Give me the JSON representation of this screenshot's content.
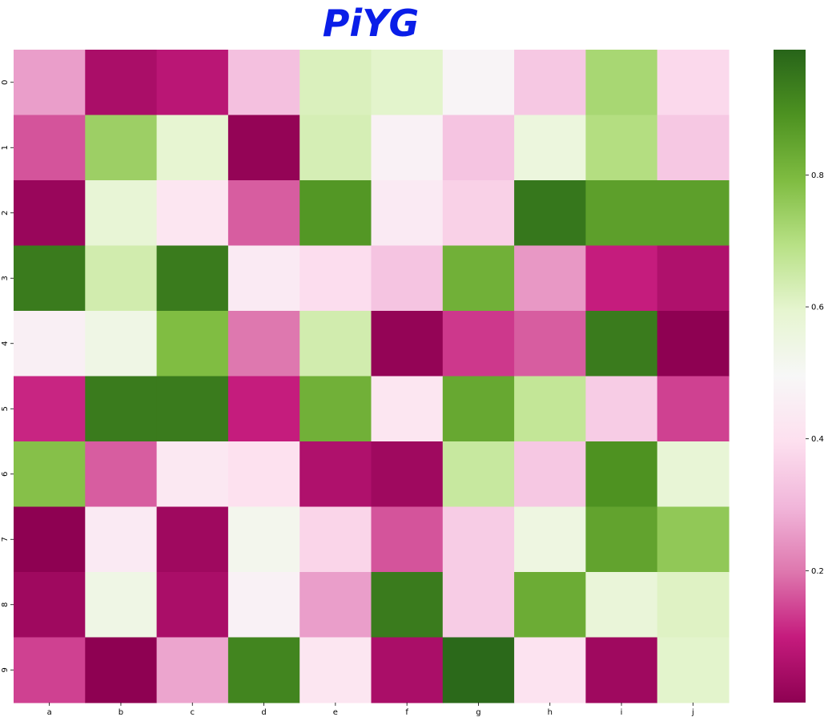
{
  "chart_data": {
    "type": "heatmap",
    "title": "PiYG",
    "colormap": "PiYG",
    "title_color": "#0a1ee8",
    "x_categories": [
      "a",
      "b",
      "c",
      "d",
      "e",
      "f",
      "g",
      "h",
      "i",
      "j"
    ],
    "y_categories": [
      "0",
      "1",
      "2",
      "3",
      "4",
      "5",
      "6",
      "7",
      "8",
      "9"
    ],
    "values": [
      [
        0.26,
        0.05,
        0.08,
        0.32,
        0.62,
        0.6,
        0.48,
        0.34,
        0.72,
        0.38
      ],
      [
        0.16,
        0.74,
        0.59,
        0.01,
        0.63,
        0.47,
        0.33,
        0.56,
        0.7,
        0.34
      ],
      [
        0.02,
        0.58,
        0.42,
        0.17,
        0.88,
        0.44,
        0.36,
        0.95,
        0.86,
        0.86
      ],
      [
        0.94,
        0.64,
        0.94,
        0.44,
        0.39,
        0.33,
        0.82,
        0.25,
        0.1,
        0.06
      ],
      [
        0.46,
        0.54,
        0.79,
        0.2,
        0.64,
        0.01,
        0.13,
        0.17,
        0.94,
        0.0
      ],
      [
        0.11,
        0.94,
        0.94,
        0.1,
        0.82,
        0.42,
        0.84,
        0.67,
        0.35,
        0.14
      ],
      [
        0.78,
        0.17,
        0.43,
        0.4,
        0.06,
        0.03,
        0.66,
        0.34,
        0.89,
        0.58
      ],
      [
        0.0,
        0.44,
        0.03,
        0.52,
        0.37,
        0.16,
        0.35,
        0.55,
        0.85,
        0.76
      ],
      [
        0.03,
        0.54,
        0.05,
        0.47,
        0.26,
        0.94,
        0.35,
        0.83,
        0.57,
        0.61
      ],
      [
        0.14,
        0.0,
        0.27,
        0.92,
        0.42,
        0.05,
        0.98,
        0.41,
        0.03,
        0.6
      ]
    ],
    "vmin": 0.0,
    "vmax": 0.99,
    "colorbar_ticks": [
      {
        "value": 0.2,
        "label": "0.2"
      },
      {
        "value": 0.4,
        "label": "0.4"
      },
      {
        "value": 0.6,
        "label": "0.6"
      },
      {
        "value": 0.8,
        "label": "0.8"
      }
    ],
    "grid": false,
    "colorbar_position": "right"
  }
}
